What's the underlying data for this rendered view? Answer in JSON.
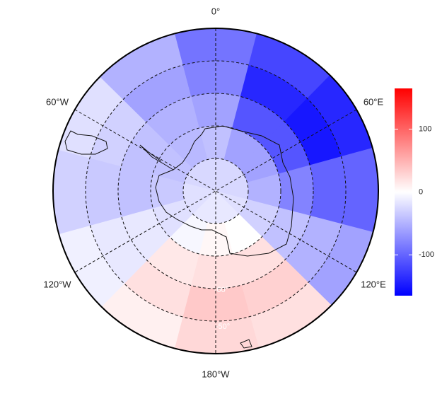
{
  "chart_data": {
    "type": "polar-map",
    "lon_labels": [
      "0°",
      "60°E",
      "120°E",
      "180°W",
      "120°W",
      "60°W"
    ],
    "lat_labels": [
      "-60°",
      "-50°"
    ],
    "field": {
      "lons": [
        0,
        30,
        60,
        90,
        120,
        150,
        180,
        -150,
        -120,
        -90,
        -60,
        -30
      ],
      "lat_edges": [
        -90,
        -80,
        -70,
        -60,
        -50,
        -40
      ],
      "values": [
        [
          -25,
          -40,
          -60,
          -80,
          -90
        ],
        [
          -25,
          -60,
          -110,
          -140,
          -120
        ],
        [
          -25,
          -60,
          -110,
          -150,
          -140
        ],
        [
          -25,
          -50,
          -80,
          -100,
          -100
        ],
        [
          -20,
          -30,
          -40,
          -50,
          -60
        ],
        [
          -15,
          0,
          20,
          30,
          20
        ],
        [
          -15,
          5,
          20,
          35,
          25
        ],
        [
          -15,
          -5,
          15,
          20,
          10
        ],
        [
          -20,
          -20,
          -15,
          -15,
          -10
        ],
        [
          -20,
          -35,
          -40,
          -35,
          -30
        ],
        [
          -25,
          -40,
          -40,
          -30,
          -20
        ],
        [
          -25,
          -45,
          -50,
          -60,
          -50
        ]
      ]
    },
    "colorbar": {
      "limits": [
        -165,
        165
      ],
      "ticks": [
        100,
        0,
        -100
      ],
      "colors": {
        "low": "#0000ff",
        "mid": "#ffffff",
        "high": "#ff0000"
      }
    }
  }
}
